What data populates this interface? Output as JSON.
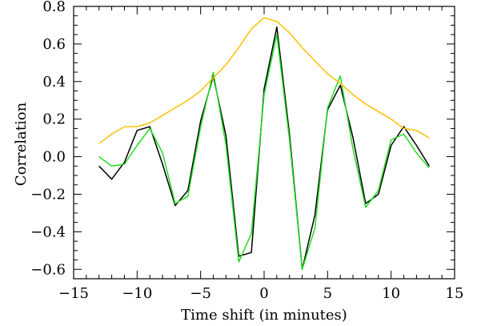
{
  "chart_data": {
    "type": "line",
    "xlabel": "Time shift (in minutes)",
    "ylabel": "Correlation",
    "xlim": [
      -15,
      15
    ],
    "ylim": [
      -0.65,
      0.8
    ],
    "x_ticks": [
      -15,
      -10,
      -5,
      0,
      5,
      10,
      15
    ],
    "x_tick_labels": [
      "−15",
      "−10",
      "−5",
      "0",
      "5",
      "10",
      "15"
    ],
    "y_ticks": [
      -0.6,
      -0.4,
      -0.2,
      0.0,
      0.2,
      0.4,
      0.6,
      0.8
    ],
    "y_tick_labels": [
      "−0.6",
      "−0.4",
      "−0.2",
      "0.0",
      "0.2",
      "0.4",
      "0.6",
      "0.8"
    ],
    "grid": false,
    "x": [
      -13,
      -12,
      -11,
      -10,
      -9,
      -8,
      -7,
      -6,
      -5,
      -4,
      -3,
      -2,
      -1,
      0,
      1,
      2,
      3,
      4,
      5,
      6,
      7,
      8,
      9,
      10,
      11,
      12,
      13
    ],
    "series": [
      {
        "color": "#000000",
        "values": [
          -0.05,
          -0.12,
          -0.03,
          0.14,
          0.16,
          -0.04,
          -0.26,
          -0.18,
          0.19,
          0.43,
          0.11,
          -0.53,
          -0.51,
          0.36,
          0.69,
          0.12,
          -0.6,
          -0.31,
          0.25,
          0.38,
          0.1,
          -0.25,
          -0.2,
          0.06,
          0.16,
          0.06,
          -0.05
        ]
      },
      {
        "color": "#22dd22",
        "values": [
          0.0,
          -0.05,
          -0.04,
          0.06,
          0.15,
          0.02,
          -0.25,
          -0.21,
          0.16,
          0.45,
          0.06,
          -0.56,
          -0.41,
          0.33,
          0.65,
          0.09,
          -0.6,
          -0.38,
          0.26,
          0.43,
          0.04,
          -0.27,
          -0.18,
          0.09,
          0.12,
          0.02,
          -0.06
        ]
      },
      {
        "color": "#ffc000",
        "values": [
          0.07,
          0.12,
          0.16,
          0.16,
          0.18,
          0.22,
          0.26,
          0.3,
          0.35,
          0.42,
          0.49,
          0.58,
          0.68,
          0.74,
          0.72,
          0.66,
          0.58,
          0.51,
          0.44,
          0.39,
          0.33,
          0.28,
          0.24,
          0.2,
          0.15,
          0.14,
          0.1
        ]
      }
    ]
  }
}
